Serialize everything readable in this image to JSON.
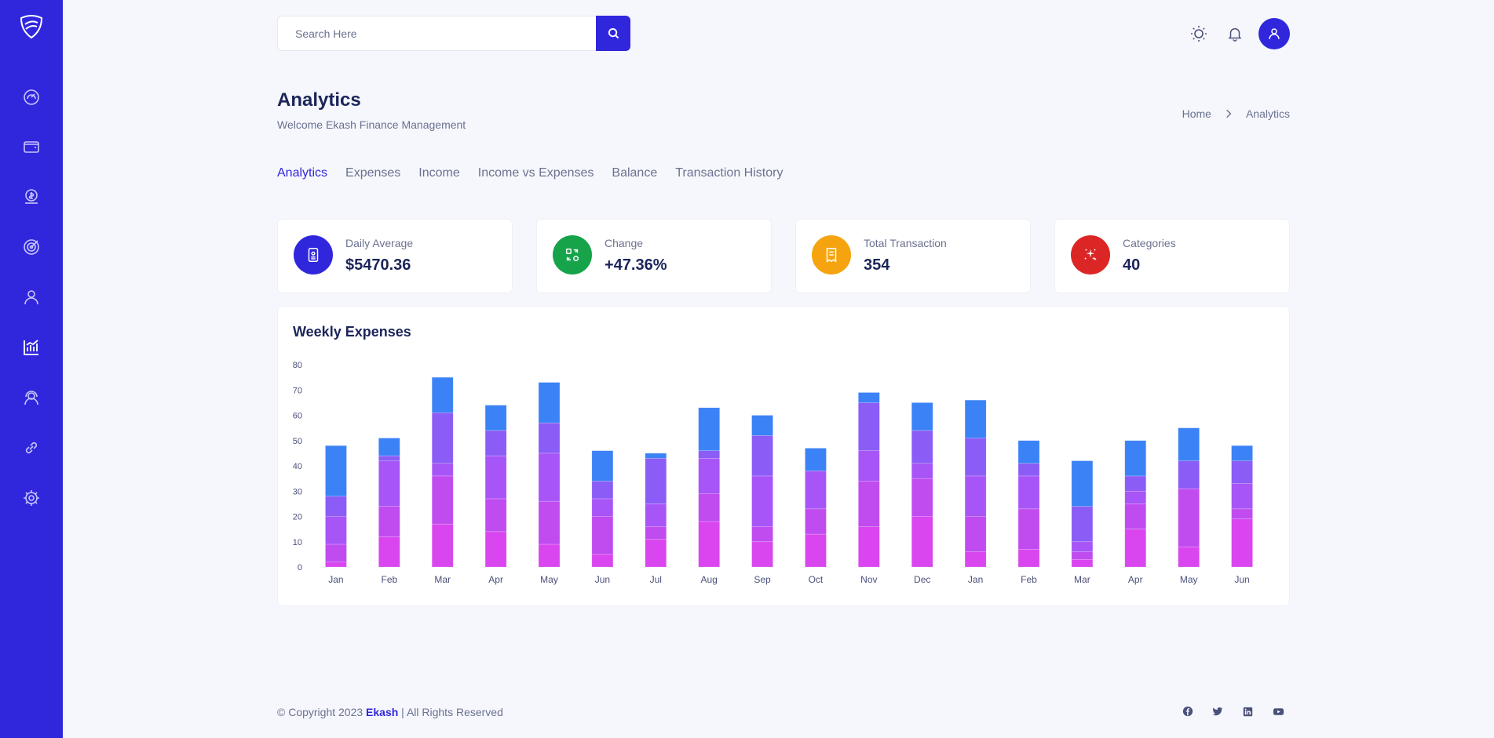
{
  "search": {
    "placeholder": "Search Here"
  },
  "page": {
    "title": "Analytics",
    "subtitle": "Welcome Ekash Finance Management"
  },
  "breadcrumb": {
    "home": "Home",
    "current": "Analytics"
  },
  "tabs": [
    "Analytics",
    "Expenses",
    "Income",
    "Income vs Expenses",
    "Balance",
    "Transaction History"
  ],
  "stats": [
    {
      "label": "Daily Average",
      "value": "$5470.36",
      "color": "#3027dd",
      "icon": "id-card-icon"
    },
    {
      "label": "Change",
      "value": "+47.36%",
      "color": "#16a34a",
      "icon": "exchange-icon"
    },
    {
      "label": "Total Transaction",
      "value": "354",
      "color": "#f5a40f",
      "icon": "receipt-icon"
    },
    {
      "label": "Categories",
      "value": "40",
      "color": "#dc2626",
      "icon": "sparkles-icon"
    }
  ],
  "sidebar": {
    "items": [
      "dashboard-icon",
      "wallet-icon",
      "budget-icon",
      "goal-icon",
      "profile-icon",
      "analytics-icon",
      "support-icon",
      "link-icon",
      "settings-icon"
    ]
  },
  "chart_data": {
    "type": "bar",
    "stacked": true,
    "title": "Weekly Expenses",
    "xlabel": "",
    "ylabel": "",
    "ylim": [
      0,
      80
    ],
    "yticks": [
      0,
      10,
      20,
      30,
      40,
      50,
      60,
      70,
      80
    ],
    "categories": [
      "Jan",
      "Feb",
      "Mar",
      "Apr",
      "May",
      "Jun",
      "Jul",
      "Aug",
      "Sep",
      "Oct",
      "Nov",
      "Dec",
      "Jan",
      "Feb",
      "Mar",
      "Apr",
      "May",
      "Jun"
    ],
    "series": [
      {
        "color": "#d946ef",
        "values": [
          2,
          12,
          17,
          14,
          9,
          5,
          11,
          18,
          10,
          13,
          16,
          20,
          6,
          7,
          3,
          15,
          8,
          19
        ]
      },
      {
        "color": "#c04cf0",
        "values": [
          7,
          12,
          19,
          13,
          17,
          15,
          5,
          11,
          6,
          10,
          18,
          15,
          14,
          16,
          3,
          10,
          23,
          4
        ]
      },
      {
        "color": "#a855f7",
        "values": [
          11,
          18,
          5,
          17,
          19,
          7,
          9,
          14,
          20,
          15,
          12,
          6,
          16,
          13,
          4,
          5,
          0,
          10
        ]
      },
      {
        "color": "#8b5cf6",
        "values": [
          8,
          2,
          20,
          10,
          12,
          7,
          18,
          3,
          16,
          0,
          19,
          13,
          15,
          5,
          14,
          6,
          11,
          9
        ]
      },
      {
        "color": "#3b82f6",
        "values": [
          20,
          7,
          14,
          10,
          16,
          12,
          2,
          17,
          8,
          9,
          4,
          11,
          15,
          9,
          18,
          14,
          13,
          6
        ]
      }
    ]
  }
}
